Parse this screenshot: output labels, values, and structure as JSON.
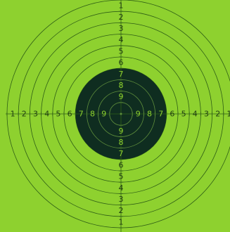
{
  "colors": {
    "paper": "#8ed12f",
    "black_zone": "#0f2d20",
    "ring_line_on_paper": "#2f5f16",
    "ring_line_on_black": "#5f8f3c",
    "digit_on_paper": "#1f3d11",
    "digit_on_black": "#8ed12f"
  },
  "rings": {
    "outer_ring_value": 1,
    "bullseye_value": 10,
    "black_zone_from_value": 7
  },
  "labels": {
    "top": [
      "1",
      "2",
      "3",
      "4",
      "5",
      "6",
      "7",
      "8",
      "9"
    ],
    "bottom": [
      "9",
      "8",
      "7",
      "6",
      "5",
      "4",
      "3",
      "2",
      "1"
    ],
    "left": [
      "1",
      "2",
      "3",
      "4",
      "5",
      "6",
      "7",
      "8",
      "9"
    ],
    "right": [
      "9",
      "8",
      "7",
      "6",
      "5",
      "4",
      "3",
      "2",
      "1"
    ]
  }
}
